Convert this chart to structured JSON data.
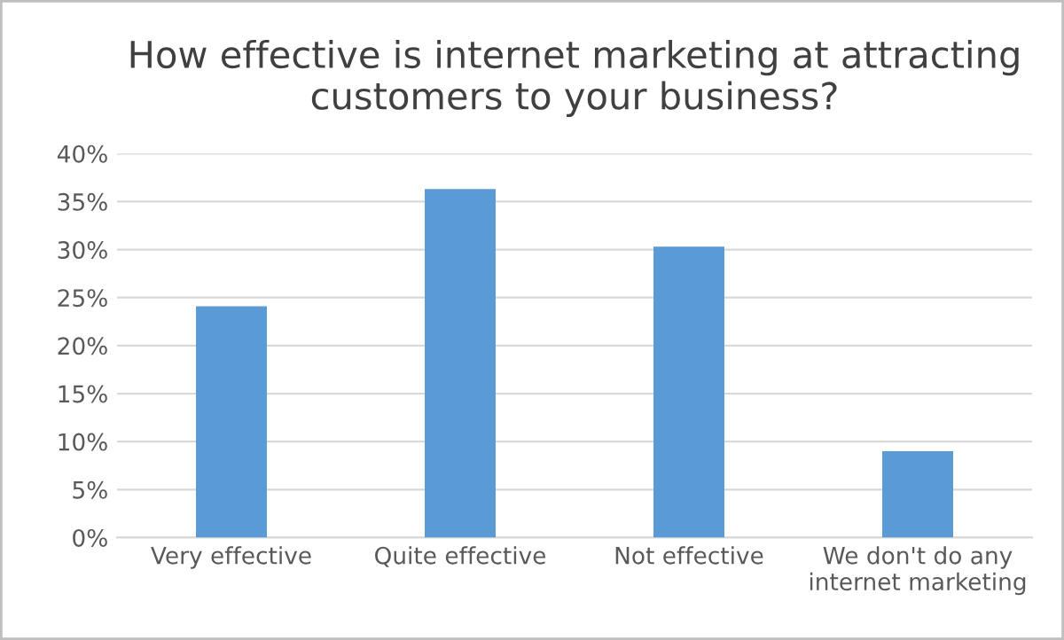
{
  "chart_data": {
    "type": "bar",
    "title": "How effective is internet marketing at attracting\ncustomers to your business?",
    "categories": [
      "Very effective",
      "Quite effective",
      "Not effective",
      "We don't do any\ninternet marketing"
    ],
    "values": [
      24.1,
      36.3,
      30.3,
      9.0
    ],
    "color": "#5b9bd5",
    "ylim": [
      0,
      40
    ],
    "yticks": [
      {
        "value": 0,
        "label": "0%"
      },
      {
        "value": 5,
        "label": "5%"
      },
      {
        "value": 10,
        "label": "10%"
      },
      {
        "value": 15,
        "label": "15%"
      },
      {
        "value": 20,
        "label": "20%"
      },
      {
        "value": 25,
        "label": "25%"
      },
      {
        "value": 30,
        "label": "30%"
      },
      {
        "value": 35,
        "label": "35%"
      },
      {
        "value": 40,
        "label": "40%"
      }
    ],
    "grid": "y",
    "legend": false
  }
}
